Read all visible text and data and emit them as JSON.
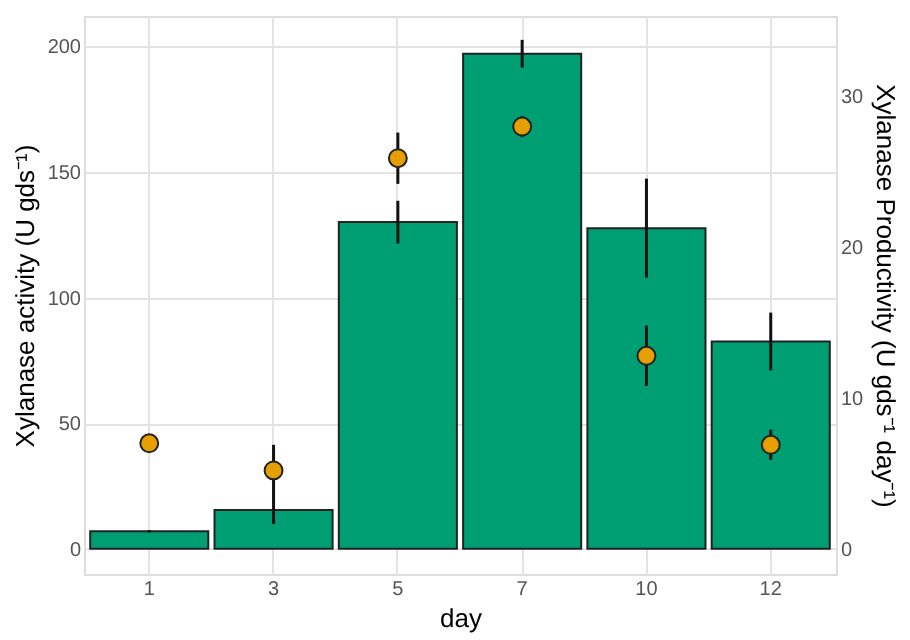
{
  "chart_data": {
    "type": "bar",
    "xlabel": "day",
    "ylabel": "Xylanase activity (U gds⁻¹)",
    "y2label": "Xylanase Productivity (U gds⁻¹ day⁻¹)",
    "categories": [
      "1",
      "3",
      "5",
      "7",
      "10",
      "12"
    ],
    "series": [
      {
        "color": "#009e73",
        "values": [
          7,
          15.5,
          130,
          197,
          127.6,
          82.5
        ],
        "errors": [
          0.5,
          5.6,
          8.5,
          5.5,
          19.7,
          11.5
        ]
      },
      {
        "type": "scatter",
        "axis": "y2",
        "color": "#e69f00",
        "marker": "circle",
        "values": [
          7.0,
          5.2,
          25.9,
          28.0,
          12.8,
          6.9
        ],
        "errors": [
          null,
          [
            3.5,
            6.9
          ],
          1.7,
          0.7,
          2.0,
          1.0
        ]
      }
    ],
    "ylim": [
      -10,
      212
    ],
    "yticks": [
      0,
      50,
      100,
      150,
      200
    ],
    "y2lim": [
      -1.667,
      35.33
    ],
    "y2ticks": [
      0,
      10,
      20,
      30
    ],
    "grid": true
  }
}
